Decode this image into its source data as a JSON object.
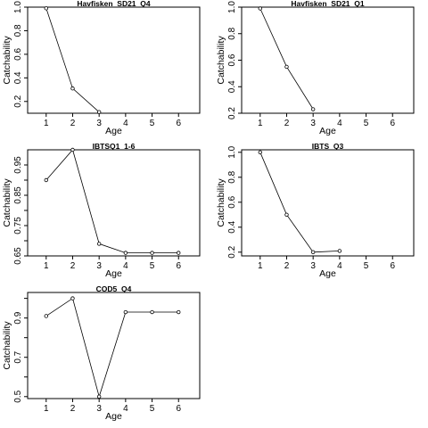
{
  "chart_data": [
    {
      "type": "line",
      "title": "Havfisken_SD21_Q4",
      "xlabel": "Age",
      "ylabel": "Catchability",
      "xlim": [
        0.3,
        6.8
      ],
      "ylim": [
        0.1,
        1.0
      ],
      "x_ticks": [
        1,
        2,
        3,
        4,
        5,
        6
      ],
      "y_ticks": [
        0.2,
        0.4,
        0.6,
        0.8,
        1.0
      ],
      "y_tick_labels": [
        "0.2",
        "0.4",
        "0.6",
        "0.8",
        "1.0"
      ],
      "x": [
        1,
        2,
        3
      ],
      "y": [
        0.99,
        0.31,
        0.11
      ]
    },
    {
      "type": "line",
      "title": "Havfisken_SD21_Q1",
      "xlabel": "Age",
      "ylabel": "Catchability",
      "xlim": [
        0.3,
        6.8
      ],
      "ylim": [
        0.2,
        1.0
      ],
      "x_ticks": [
        1,
        2,
        3,
        4,
        5,
        6
      ],
      "y_ticks": [
        0.2,
        0.4,
        0.6,
        0.8,
        1.0
      ],
      "y_tick_labels": [
        "0.2",
        "0.4",
        "0.6",
        "0.8",
        "1.0"
      ],
      "x": [
        1,
        2,
        3
      ],
      "y": [
        0.99,
        0.55,
        0.23
      ]
    },
    {
      "type": "line",
      "title": "IBTSQ1_1-6",
      "xlabel": "Age",
      "ylabel": "Catchability",
      "xlim": [
        0.3,
        6.8
      ],
      "ylim": [
        0.65,
        1.0
      ],
      "x_ticks": [
        1,
        2,
        3,
        4,
        5,
        6
      ],
      "y_ticks": [
        0.65,
        0.7,
        0.75,
        0.8,
        0.85,
        0.9,
        0.95
      ],
      "y_tick_labels": [
        "0.65",
        "",
        "0.75",
        "",
        "0.85",
        "",
        "0.95"
      ],
      "x": [
        1,
        2,
        3,
        4,
        5,
        6
      ],
      "y": [
        0.9,
        1.0,
        0.69,
        0.66,
        0.66,
        0.66
      ]
    },
    {
      "type": "line",
      "title": "IBTS_Q3",
      "xlabel": "Age",
      "ylabel": "Catchability",
      "xlim": [
        0.3,
        6.8
      ],
      "ylim": [
        0.17,
        1.02
      ],
      "x_ticks": [
        1,
        2,
        3,
        4,
        5,
        6
      ],
      "y_ticks": [
        0.2,
        0.4,
        0.6,
        0.8,
        1.0
      ],
      "y_tick_labels": [
        "0.2",
        "0.4",
        "0.6",
        "0.8",
        "1.0"
      ],
      "x": [
        1,
        2,
        3,
        4
      ],
      "y": [
        1.0,
        0.5,
        0.2,
        0.21
      ]
    },
    {
      "type": "line",
      "title": "COD5_Q4",
      "xlabel": "Age",
      "ylabel": "Catchability",
      "xlim": [
        0.3,
        6.8
      ],
      "ylim": [
        0.49,
        1.03
      ],
      "x_ticks": [
        1,
        2,
        3,
        4,
        5,
        6
      ],
      "y_ticks": [
        0.5,
        0.6,
        0.7,
        0.8,
        0.9,
        1.0
      ],
      "y_tick_labels": [
        "0.5",
        "",
        "0.7",
        "",
        "0.9",
        ""
      ],
      "x": [
        1,
        2,
        3,
        4,
        5,
        6
      ],
      "y": [
        0.91,
        1.0,
        0.5,
        0.93,
        0.93,
        0.93
      ]
    }
  ]
}
